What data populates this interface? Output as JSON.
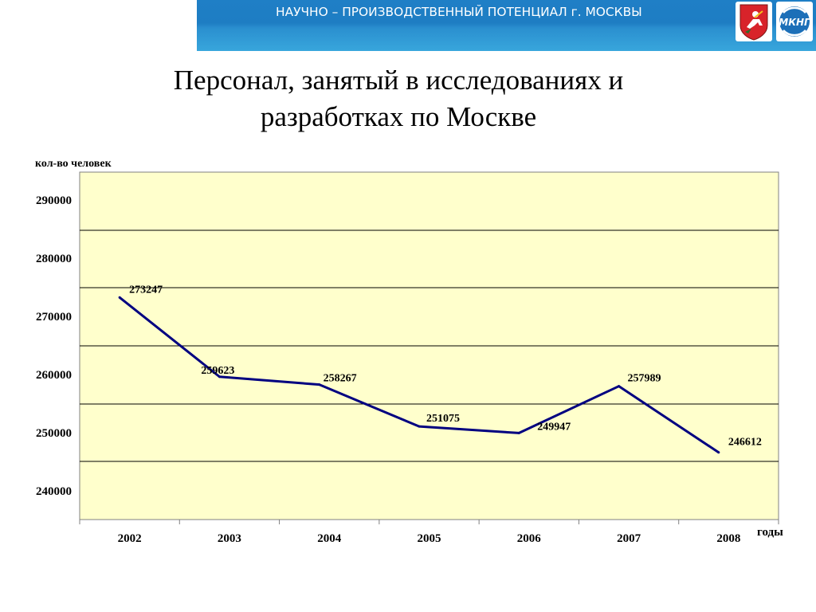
{
  "header": {
    "banner_text": "НАУЧНО – ПРОИЗВОДСТВЕННЫЙ ПОТЕНЦИАЛ г. МОСКВЫ",
    "logos": [
      {
        "name": "moscow-coat-of-arms-logo"
      },
      {
        "name": "mkng-logo",
        "text": "МКНГ"
      }
    ]
  },
  "colors": {
    "banner": "#1f7fc6",
    "plot_background": "#ffffcc",
    "line": "#000080",
    "grid": "#000000"
  },
  "chart_data": {
    "type": "line",
    "title": "Персонал, занятый в исследованиях и разработках по Москве",
    "title_lines": [
      "Персонал, занятый в исследованиях и",
      "разработках по Москве"
    ],
    "ylabel": "кол-во человек",
    "xlabel": "годы",
    "categories": [
      "2002",
      "2003",
      "2004",
      "2005",
      "2006",
      "2007",
      "2008"
    ],
    "ytick_labels": [
      "240000",
      "250000",
      "260000",
      "270000",
      "280000",
      "290000"
    ],
    "series": [
      {
        "values": [
          273247,
          259623,
          258267,
          251075,
          249947,
          257989,
          246612
        ],
        "labels": [
          "273247",
          "259623",
          "258267",
          "251075",
          "249947",
          "257989",
          "246612"
        ]
      }
    ],
    "grid": true,
    "legend": "none"
  }
}
